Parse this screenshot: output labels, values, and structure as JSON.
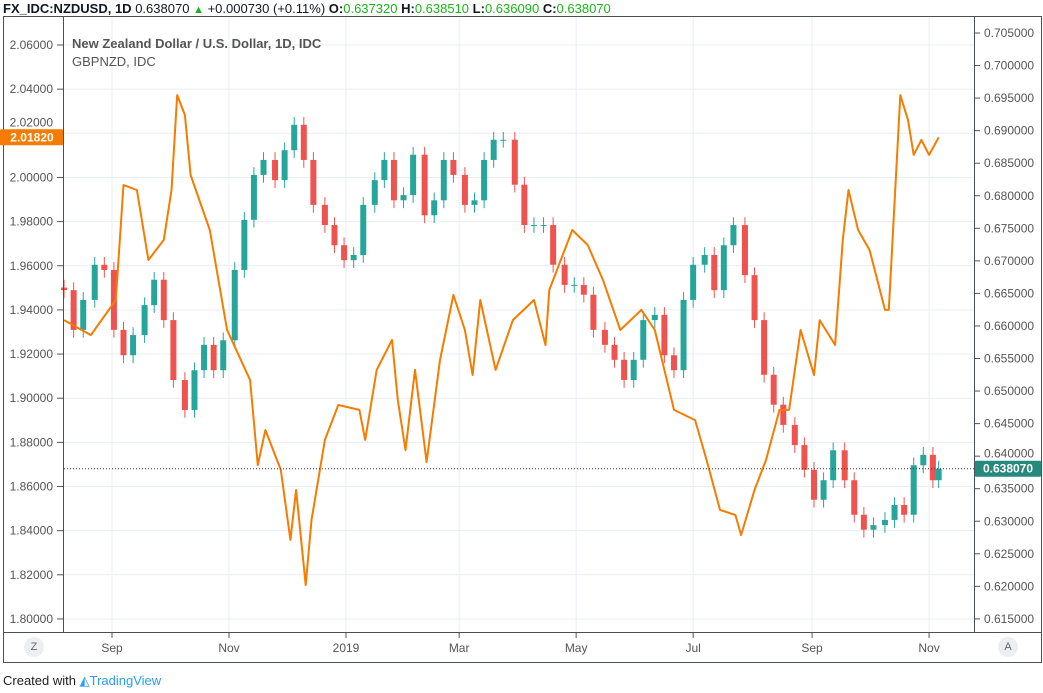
{
  "header": {
    "symbol": "FX_IDC:NZDUSD, 1D",
    "last": "0.638070",
    "change": "+0.000730 (+0.11%)",
    "o_label": "O:",
    "o": "0.637320",
    "h_label": "H:",
    "h": "0.638510",
    "l_label": "L:",
    "l": "0.636090",
    "c_label": "C:",
    "c": "0.638070"
  },
  "legend": {
    "main": "New Zealand Dollar / U.S. Dollar, 1D, IDC",
    "overlay": "GBPNZD, IDC"
  },
  "buttons": {
    "left": "Z",
    "right": "A"
  },
  "footer": {
    "created_with": "Created with",
    "brand": "TradingView"
  },
  "colors": {
    "up": "#26a69a",
    "down": "#ef5350",
    "overlay": "#f57c00",
    "grid": "#e9eef5",
    "last_price_label": "#26897e"
  },
  "chart_data": [
    {
      "type": "candlestick",
      "name": "NZDUSD",
      "axis": "right",
      "ylim": [
        0.6125,
        0.7075
      ],
      "yticks": [
        "0.705000",
        "0.700000",
        "0.695000",
        "0.690000",
        "0.685000",
        "0.680000",
        "0.675000",
        "0.670000",
        "0.665000",
        "0.660000",
        "0.655000",
        "0.650000",
        "0.645000",
        "0.640000",
        "0.635000",
        "0.630000",
        "0.625000",
        "0.620000",
        "0.615000"
      ],
      "last_value_label": "0.638070",
      "last_value": 0.63807,
      "dates": [
        "2018-08-07",
        "2018-08-12",
        "2018-08-17",
        "2018-08-23",
        "2018-08-28",
        "2018-09-02",
        "2018-09-07",
        "2018-09-12",
        "2018-09-18",
        "2018-09-23",
        "2018-09-28",
        "2018-10-03",
        "2018-10-09",
        "2018-10-14",
        "2018-10-19",
        "2018-10-24",
        "2018-10-29",
        "2018-11-04",
        "2018-11-09",
        "2018-11-14",
        "2018-11-19",
        "2018-11-25",
        "2018-11-30",
        "2018-12-05",
        "2018-12-10",
        "2018-12-15",
        "2018-12-21",
        "2018-12-26",
        "2018-12-31",
        "2019-01-05",
        "2019-01-10",
        "2019-01-16",
        "2019-01-21",
        "2019-01-26",
        "2019-01-31",
        "2019-02-05",
        "2019-02-11",
        "2019-02-16",
        "2019-02-21",
        "2019-02-26",
        "2019-03-04",
        "2019-03-09",
        "2019-03-14",
        "2019-03-19",
        "2019-03-24",
        "2019-03-30",
        "2019-04-04",
        "2019-04-09",
        "2019-04-14",
        "2019-04-19",
        "2019-04-25",
        "2019-04-30",
        "2019-05-05",
        "2019-05-10",
        "2019-05-16",
        "2019-05-21",
        "2019-05-26",
        "2019-05-31",
        "2019-06-05",
        "2019-06-11",
        "2019-06-16",
        "2019-06-21",
        "2019-06-26",
        "2019-07-01",
        "2019-07-07",
        "2019-07-12",
        "2019-07-17",
        "2019-07-22",
        "2019-07-28",
        "2019-08-02",
        "2019-08-07",
        "2019-08-12",
        "2019-08-17",
        "2019-08-23",
        "2019-08-28",
        "2019-09-02",
        "2019-09-07",
        "2019-09-12",
        "2019-09-18",
        "2019-09-23",
        "2019-09-28",
        "2019-10-03",
        "2019-10-09",
        "2019-10-14",
        "2019-10-19",
        "2019-10-24",
        "2019-10-29",
        "2019-11-03",
        "2019-11-06"
      ],
      "close": [
        0.6655,
        0.6594,
        0.664,
        0.6694,
        0.6686,
        0.6594,
        0.6555,
        0.6586,
        0.6632,
        0.6671,
        0.6609,
        0.6517,
        0.6471,
        0.6532,
        0.6571,
        0.6532,
        0.6578,
        0.6686,
        0.6763,
        0.6832,
        0.6855,
        0.6824,
        0.687,
        0.6909,
        0.6855,
        0.6786,
        0.6755,
        0.6724,
        0.6701,
        0.6709,
        0.6786,
        0.6824,
        0.6855,
        0.6793,
        0.6801,
        0.6863,
        0.677,
        0.6793,
        0.6855,
        0.6832,
        0.6786,
        0.6793,
        0.6855,
        0.6886,
        0.6886,
        0.6817,
        0.6755,
        0.6755,
        0.6755,
        0.6694,
        0.6663,
        0.6663,
        0.6648,
        0.6594,
        0.6571,
        0.6548,
        0.6517,
        0.6548,
        0.6609,
        0.6617,
        0.6555,
        0.6532,
        0.664,
        0.6694,
        0.6709,
        0.6655,
        0.6724,
        0.6755,
        0.6678,
        0.6609,
        0.6525,
        0.6479,
        0.6448,
        0.6417,
        0.6379,
        0.6333,
        0.6363,
        0.6409,
        0.6363,
        0.631,
        0.6287,
        0.6294,
        0.6302,
        0.6325,
        0.631,
        0.6386,
        0.6402,
        0.6363,
        0.63807
      ]
    },
    {
      "type": "line",
      "name": "GBPNZD",
      "axis": "left",
      "ylim": [
        1.795,
        2.0705
      ],
      "yticks": [
        "2.06000",
        "2.04000",
        "2.02000",
        "2.00000",
        "1.98000",
        "1.96000",
        "1.94000",
        "1.92000",
        "1.90000",
        "1.88000",
        "1.86000",
        "1.84000",
        "1.82000",
        "1.80000"
      ],
      "last_value_label": "2.01820",
      "last_value": 2.0182,
      "dates": [
        "2018-08-07",
        "2018-08-21",
        "2018-09-03",
        "2018-09-07",
        "2018-09-14",
        "2018-09-20",
        "2018-09-28",
        "2018-10-02",
        "2018-10-05",
        "2018-10-09",
        "2018-10-12",
        "2018-10-22",
        "2018-10-31",
        "2018-11-12",
        "2018-11-16",
        "2018-11-20",
        "2018-11-28",
        "2018-12-03",
        "2018-12-06",
        "2018-12-11",
        "2018-12-14",
        "2018-12-21",
        "2018-12-28",
        "2019-01-08",
        "2019-01-11",
        "2019-01-17",
        "2019-01-25",
        "2019-01-28",
        "2019-02-01",
        "2019-02-06",
        "2019-02-12",
        "2019-02-19",
        "2019-02-26",
        "2019-03-04",
        "2019-03-08",
        "2019-03-12",
        "2019-03-20",
        "2019-03-29",
        "2019-04-09",
        "2019-04-15",
        "2019-04-17",
        "2019-04-29",
        "2019-05-07",
        "2019-05-15",
        "2019-05-24",
        "2019-06-04",
        "2019-06-11",
        "2019-06-21",
        "2019-07-02",
        "2019-07-08",
        "2019-07-15",
        "2019-07-23",
        "2019-07-26",
        "2019-08-02",
        "2019-08-08",
        "2019-08-15",
        "2019-08-20",
        "2019-08-26",
        "2019-09-02",
        "2019-09-05",
        "2019-09-13",
        "2019-09-17",
        "2019-09-20",
        "2019-09-25",
        "2019-10-01",
        "2019-10-09",
        "2019-10-11",
        "2019-10-17",
        "2019-10-21",
        "2019-10-24",
        "2019-10-28",
        "2019-11-01",
        "2019-11-06"
      ],
      "values": [
        1.9354,
        1.9286,
        1.9445,
        1.9966,
        1.9943,
        1.9626,
        1.9717,
        1.9943,
        2.0373,
        2.0283,
        2.0011,
        1.9762,
        1.9309,
        1.9082,
        1.8697,
        1.8856,
        1.8675,
        1.8358,
        1.8584,
        1.8154,
        1.8448,
        1.8811,
        1.8969,
        1.8947,
        1.8811,
        1.9128,
        1.9264,
        1.8992,
        1.8765,
        1.9128,
        1.8711,
        1.9173,
        1.9468,
        1.9309,
        1.9105,
        1.9445,
        1.9128,
        1.9354,
        1.9445,
        1.9241,
        1.949,
        1.9762,
        1.9694,
        1.9535,
        1.9309,
        1.94,
        1.9309,
        1.8947,
        1.8901,
        1.872,
        1.8494,
        1.8471,
        1.838,
        1.8584,
        1.872,
        1.8947,
        1.8947,
        1.9309,
        1.9105,
        1.9354,
        1.9241,
        1.9717,
        1.9943,
        1.9762,
        1.9671,
        1.94,
        1.94,
        2.0373,
        2.026,
        2.0102,
        2.017,
        2.0102,
        2.0182
      ]
    }
  ],
  "xaxis": {
    "ticks": [
      {
        "label": "Sep",
        "date": "2018-09-01"
      },
      {
        "label": "Nov",
        "date": "2018-11-01"
      },
      {
        "label": "2019",
        "date": "2019-01-01"
      },
      {
        "label": "Mar",
        "date": "2019-03-01"
      },
      {
        "label": "May",
        "date": "2019-05-01"
      },
      {
        "label": "Jul",
        "date": "2019-07-01"
      },
      {
        "label": "Sep",
        "date": "2019-09-01"
      },
      {
        "label": "Nov",
        "date": "2019-11-01"
      }
    ]
  }
}
